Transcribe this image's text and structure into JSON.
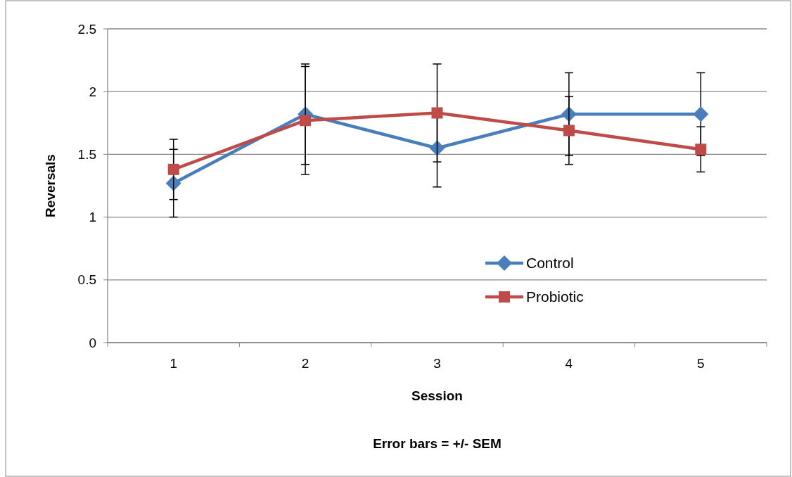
{
  "chart_data": {
    "type": "line",
    "xlabel": "Session",
    "ylabel": "Reversals",
    "annotations": [
      "Error bars = +/- SEM"
    ],
    "categories": [
      "1",
      "2",
      "3",
      "4",
      "5"
    ],
    "series": [
      {
        "name": "Control",
        "color": "#4a7ebb",
        "marker": "diamond",
        "values": [
          1.27,
          1.82,
          1.55,
          1.82,
          1.82
        ],
        "errors": [
          0.27,
          0.4,
          0.31,
          0.33,
          0.33
        ]
      },
      {
        "name": "Probiotic",
        "color": "#be4b48",
        "marker": "square",
        "values": [
          1.38,
          1.77,
          1.83,
          1.69,
          1.54
        ],
        "errors": [
          0.24,
          0.43,
          0.39,
          0.27,
          0.18
        ]
      }
    ],
    "ylim": [
      0,
      2.5
    ],
    "yticks": [
      0,
      0.5,
      1,
      1.5,
      2,
      2.5
    ],
    "grid": "y",
    "legend": "right",
    "line_style": "solid"
  }
}
